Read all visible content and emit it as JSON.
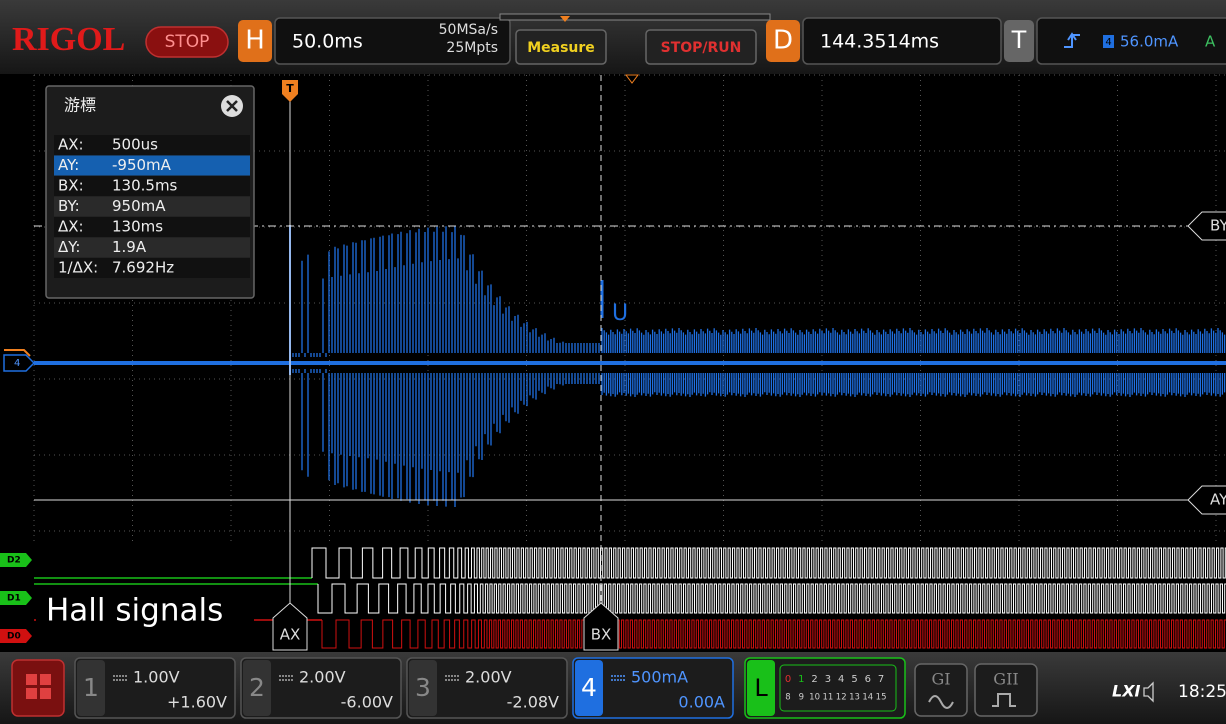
{
  "header": {
    "brand": "RIGOL",
    "run_state": "STOP",
    "timebase": {
      "label": "H",
      "value": "50.0ms",
      "sample_rate": "50MSa/s",
      "memory_depth": "25Mpts"
    },
    "buttons": [
      "Measure",
      "STOP/RUN"
    ],
    "delay": {
      "label": "D",
      "value": "144.3514ms"
    },
    "trigger": {
      "label": "T",
      "channel": "4",
      "level": "56.0mA",
      "coupling": "A"
    }
  },
  "cursor_panel": {
    "title": "游標",
    "selected": 1,
    "rows": [
      [
        "AX:",
        "500us"
      ],
      [
        "AY:",
        "-950mA"
      ],
      [
        "BX:",
        "130.5ms"
      ],
      [
        "BY:",
        "950mA"
      ],
      [
        "ΔX:",
        "130ms"
      ],
      [
        "ΔY:",
        "1.9A"
      ],
      [
        "1/ΔX:",
        "7.692Hz"
      ]
    ]
  },
  "screen": {
    "trigger_marker": "T",
    "channel_marker": "4",
    "cursor_y_labels": [
      "BY",
      "AY"
    ],
    "cursor_x_labels": [
      "AX",
      "BX"
    ],
    "hint": "U",
    "digital_channels": [
      "D2",
      "D1",
      "D0"
    ],
    "annotation": "Hall signals"
  },
  "footer": {
    "channels": [
      {
        "number": "1",
        "scale": "1.00V",
        "offset": "+1.60V"
      },
      {
        "number": "2",
        "scale": "2.00V",
        "offset": "-6.00V"
      },
      {
        "number": "3",
        "scale": "2.00V",
        "offset": "-2.08V"
      },
      {
        "number": "4",
        "scale": "500mA",
        "offset": "0.00A"
      }
    ],
    "logic": {
      "label": "L",
      "row1": [
        "0",
        "1",
        "2",
        "3",
        "4",
        "5",
        "6",
        "7"
      ],
      "row2": [
        "8",
        "9",
        "10",
        "11",
        "12",
        "13",
        "14",
        "15"
      ]
    },
    "generators": [
      "GI",
      "GII"
    ],
    "status": {
      "lxi": "LXI",
      "time": "18:25"
    }
  }
}
